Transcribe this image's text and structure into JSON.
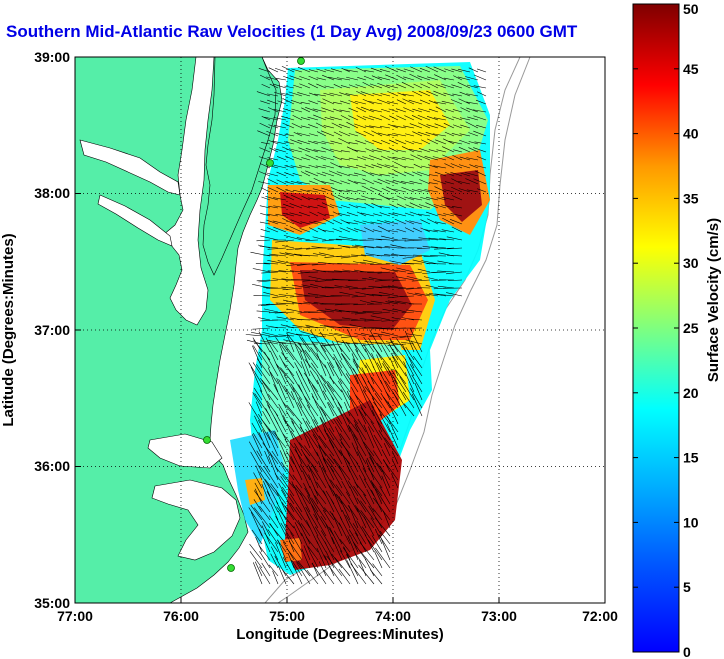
{
  "title": "Southern Mid-Atlantic Raw Velocities (1 Day Avg) 2008/09/23 0600 GMT",
  "map": {
    "xlabel": "Longitude (Degrees:Minutes)",
    "ylabel": "Latitude (Degrees:Minutes)",
    "x_ticks": [
      "77:00",
      "76:00",
      "75:00",
      "74:00",
      "73:00",
      "72:00"
    ],
    "y_ticks": [
      "39:00",
      "38:00",
      "37:00",
      "36:00",
      "35:00"
    ],
    "xlim": [
      -77,
      -72
    ],
    "ylim": [
      35,
      39
    ],
    "grid": "dotted",
    "colors": {
      "land": "#55eea8",
      "water": "#ffffff",
      "station": "#33dd33"
    },
    "station_marker": "green-circle"
  },
  "colorbar": {
    "label": "Surface Velocity (cm/s)",
    "min": 0,
    "max": 50,
    "ticks": [
      "0",
      "5",
      "10",
      "15",
      "20",
      "25",
      "30",
      "35",
      "40",
      "45",
      "50"
    ],
    "colormap": "jet"
  }
}
